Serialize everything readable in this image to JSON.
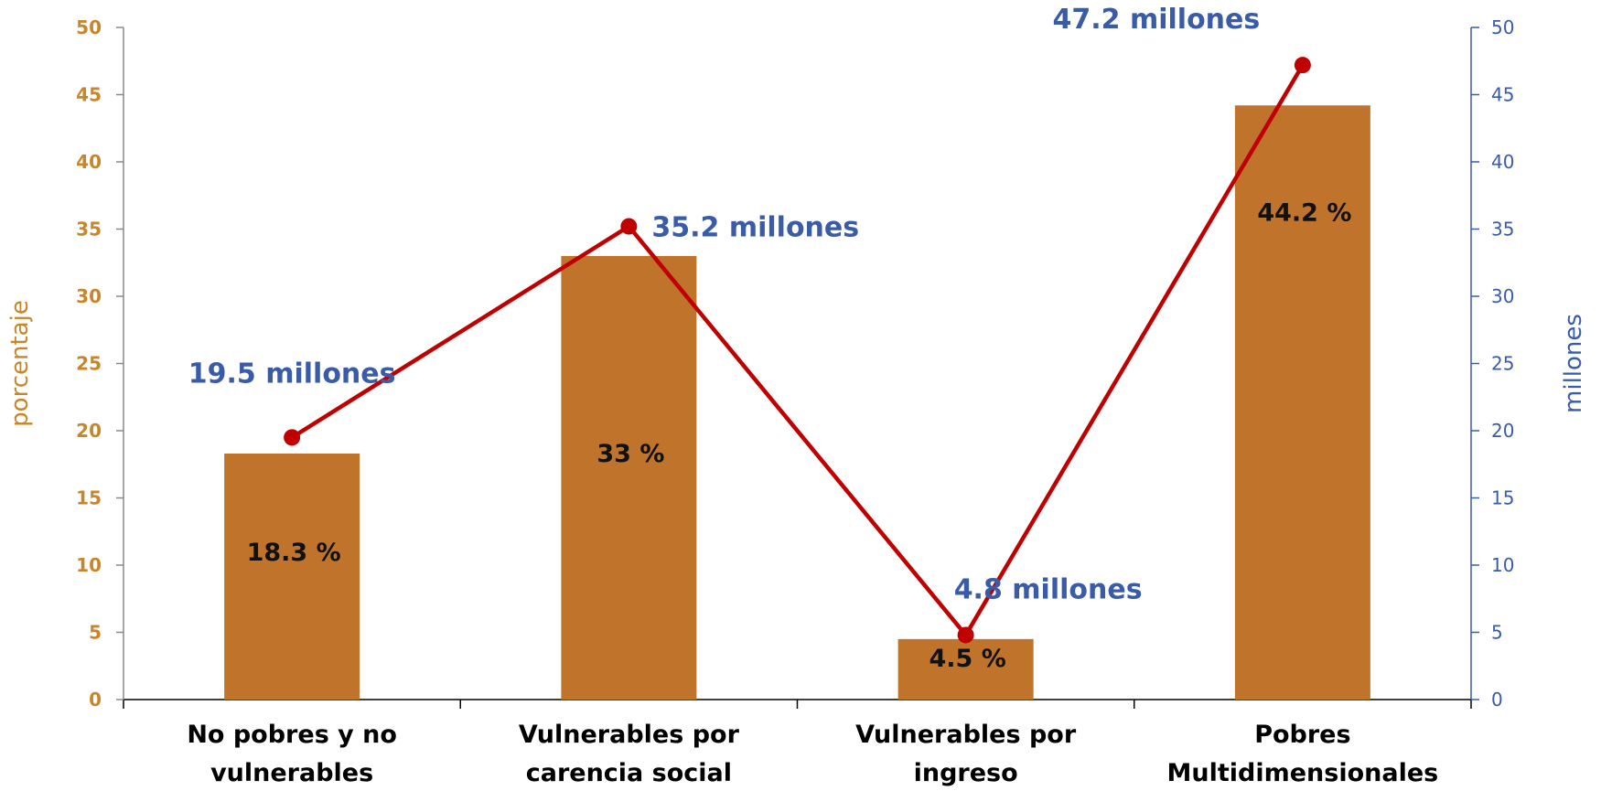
{
  "chart_data": {
    "type": "bar",
    "categories": [
      [
        "No pobres y no",
        "vulnerables"
      ],
      [
        "Vulnerables por",
        "carencia social"
      ],
      [
        "Vulnerables por",
        "ingreso"
      ],
      [
        "Pobres",
        "Multidimensionales"
      ]
    ],
    "bars": {
      "values": [
        18.3,
        33,
        4.5,
        44.2
      ],
      "labels": [
        "18.3 %",
        "33 %",
        "4.5 %",
        "44.2 %"
      ],
      "color": "#C0732A"
    },
    "line": {
      "type": "line",
      "values": [
        19.5,
        35.2,
        4.8,
        47.2
      ],
      "labels": [
        "19.5 millones",
        "35.2 millones",
        "4.8 millones",
        "47.2 millones"
      ],
      "color": "#C00000",
      "label_color": "#3A5BA8"
    },
    "ylabel_left": "porcentaje",
    "ylabel_right": "millones",
    "ylim_left": [
      0,
      50
    ],
    "ylim_right": [
      0,
      50
    ],
    "yticks": [
      0,
      5,
      10,
      15,
      20,
      25,
      30,
      35,
      40,
      45,
      50
    ],
    "left_axis_color": "#C8862A",
    "right_axis_color": "#3A5BA8",
    "grid": false
  }
}
